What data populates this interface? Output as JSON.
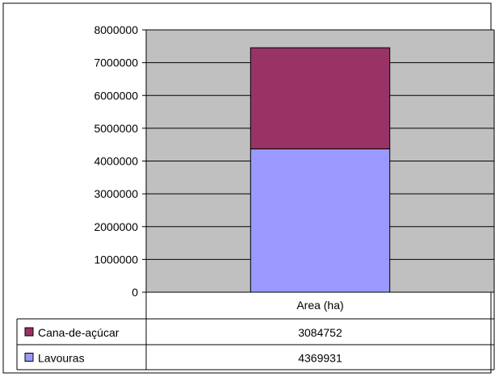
{
  "chart_data": {
    "type": "bar",
    "stacked": true,
    "categories": [
      "Area (ha)"
    ],
    "series": [
      {
        "name": "Lavouras",
        "values": [
          4369931
        ],
        "color": "#9999ff"
      },
      {
        "name": "Cana-de-açúcar",
        "values": [
          3084752
        ],
        "color": "#993366"
      }
    ],
    "table_rows_order": [
      "Cana-de-açúcar",
      "Lavouras"
    ],
    "yticks": [
      0,
      1000000,
      2000000,
      3000000,
      4000000,
      5000000,
      6000000,
      7000000,
      8000000
    ],
    "ylim": [
      0,
      8000000
    ],
    "grid": true,
    "data_table": true,
    "colors": {
      "plot_background": "#c0c0c0",
      "gridline": "#000000",
      "border": "#000000"
    }
  }
}
